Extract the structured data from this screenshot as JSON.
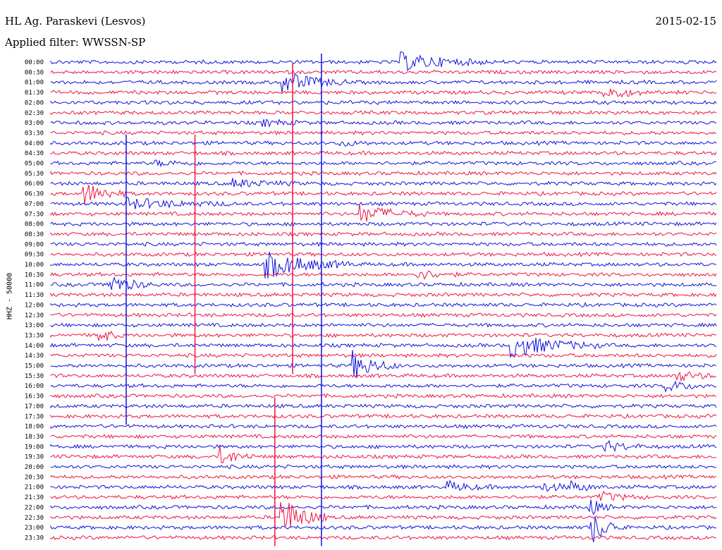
{
  "header": {
    "station": "HL Ag. Paraskevi (Lesvos)",
    "filter": "Applied filter: WWSSN-SP",
    "date": "2015-02-15"
  },
  "axis": {
    "channel_label": "HHZ - 50000"
  },
  "colors": {
    "trace_a": "#1010dd",
    "trace_b": "#ee1144",
    "background": "#ffffff",
    "text": "#000000"
  },
  "chart_data": {
    "type": "helicorder",
    "title": "",
    "xlabel": "",
    "ylabel": "HHZ - 50000",
    "row_interval_minutes": 30,
    "rows": [
      "00:00",
      "00:30",
      "01:00",
      "01:30",
      "02:00",
      "02:30",
      "03:00",
      "03:30",
      "04:00",
      "04:30",
      "05:00",
      "05:30",
      "06:00",
      "06:30",
      "07:00",
      "07:30",
      "08:00",
      "08:30",
      "09:00",
      "09:30",
      "10:00",
      "10:30",
      "11:00",
      "11:30",
      "12:00",
      "12:30",
      "13:00",
      "13:30",
      "14:00",
      "14:30",
      "15:00",
      "15:30",
      "16:00",
      "16:30",
      "17:00",
      "17:30",
      "18:00",
      "18:30",
      "19:00",
      "19:30",
      "20:00",
      "20:30",
      "21:00",
      "21:30",
      "22:00",
      "22:30",
      "23:00",
      "23:30"
    ],
    "row_colors": [
      "trace_a",
      "trace_b"
    ],
    "events": [
      {
        "row": 0,
        "minute": 15.8,
        "amp": 12,
        "dur": 4,
        "kind": "big"
      },
      {
        "row": 2,
        "minute": 10.5,
        "amp": 14,
        "dur": 3,
        "kind": "big"
      },
      {
        "row": 3,
        "minute": 25.0,
        "amp": 10,
        "dur": 2,
        "kind": "big"
      },
      {
        "row": 6,
        "minute": 9.6,
        "amp": 6,
        "dur": 2,
        "kind": "burst"
      },
      {
        "row": 8,
        "minute": 13.1,
        "amp": 5,
        "dur": 1.5,
        "kind": "burst"
      },
      {
        "row": 10,
        "minute": 4.8,
        "amp": 4,
        "dur": 3,
        "kind": "burst"
      },
      {
        "row": 12,
        "minute": 8.2,
        "amp": 8,
        "dur": 3,
        "kind": "burst"
      },
      {
        "row": 13,
        "minute": 1.5,
        "amp": 16,
        "dur": 2,
        "kind": "big"
      },
      {
        "row": 14,
        "minute": 3.5,
        "amp": 10,
        "dur": 5,
        "kind": "burst"
      },
      {
        "row": 15,
        "minute": 14.0,
        "amp": 12,
        "dur": 3,
        "kind": "big"
      },
      {
        "row": 20,
        "minute": 9.7,
        "amp": 18,
        "dur": 4,
        "kind": "big"
      },
      {
        "row": 21,
        "minute": 16.5,
        "amp": 10,
        "dur": 2,
        "kind": "burst"
      },
      {
        "row": 22,
        "minute": 2.6,
        "amp": 14,
        "dur": 2,
        "kind": "big"
      },
      {
        "row": 27,
        "minute": 2.2,
        "amp": 12,
        "dur": 1,
        "kind": "big"
      },
      {
        "row": 28,
        "minute": 20.8,
        "amp": 16,
        "dur": 4,
        "kind": "big"
      },
      {
        "row": 30,
        "minute": 13.7,
        "amp": 18,
        "dur": 2,
        "kind": "big"
      },
      {
        "row": 31,
        "minute": 28.2,
        "amp": 10,
        "dur": 2,
        "kind": "burst"
      },
      {
        "row": 32,
        "minute": 27.8,
        "amp": 10,
        "dur": 2,
        "kind": "burst"
      },
      {
        "row": 38,
        "minute": 25.0,
        "amp": 10,
        "dur": 2,
        "kind": "burst"
      },
      {
        "row": 39,
        "minute": 7.7,
        "amp": 12,
        "dur": 1.5,
        "kind": "big"
      },
      {
        "row": 42,
        "minute": 17.9,
        "amp": 10,
        "dur": 2,
        "kind": "burst"
      },
      {
        "row": 42,
        "minute": 22.2,
        "amp": 8,
        "dur": 2,
        "kind": "burst"
      },
      {
        "row": 42,
        "minute": 23.5,
        "amp": 8,
        "dur": 1.5,
        "kind": "burst"
      },
      {
        "row": 43,
        "minute": 24.8,
        "amp": 9,
        "dur": 2,
        "kind": "burst"
      },
      {
        "row": 44,
        "minute": 24.3,
        "amp": 12,
        "dur": 1,
        "kind": "big"
      },
      {
        "row": 45,
        "minute": 10.4,
        "amp": 30,
        "dur": 2,
        "kind": "big"
      },
      {
        "row": 46,
        "minute": 24.4,
        "amp": 22,
        "dur": 1.5,
        "kind": "big"
      }
    ],
    "spikes": [
      {
        "minute": 10.9,
        "row_from": 1,
        "row_to": 30,
        "color": "trace_b"
      },
      {
        "minute": 12.2,
        "row_from": 0,
        "row_to": 47,
        "color": "trace_a"
      },
      {
        "minute": 10.1,
        "row_from": 34,
        "row_to": 47,
        "color": "trace_b"
      },
      {
        "minute": 3.4,
        "row_from": 8,
        "row_to": 35,
        "color": "trace_a"
      },
      {
        "minute": 6.5,
        "row_from": 8,
        "row_to": 30,
        "color": "trace_b"
      }
    ]
  }
}
